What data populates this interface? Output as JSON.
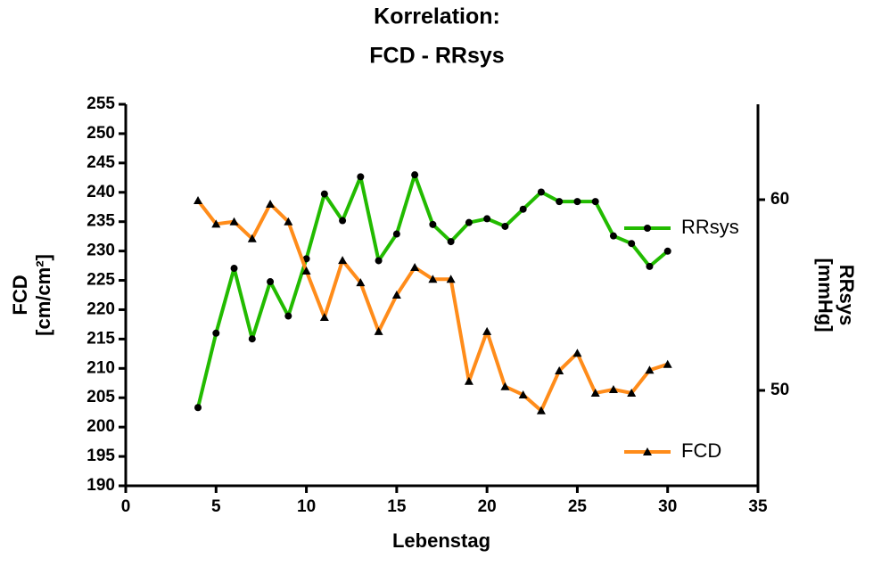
{
  "chart_data": {
    "type": "line",
    "title": [
      "Korrelation:",
      "FCD - RRsys"
    ],
    "x_label": "Lebenstag",
    "y_label": [
      "FCD",
      "[cm/cm²]"
    ],
    "y2_label": [
      "RRsys",
      "[mmHg]"
    ],
    "x": [
      4,
      5,
      6,
      7,
      8,
      9,
      10,
      11,
      12,
      13,
      14,
      15,
      16,
      17,
      18,
      19,
      20,
      21,
      22,
      23,
      24,
      25,
      26,
      27,
      28,
      29,
      30
    ],
    "xlim": [
      0,
      35
    ],
    "xticks": [
      0,
      5,
      10,
      15,
      20,
      25,
      30,
      35
    ],
    "ylim": [
      190,
      255
    ],
    "yticks": [
      190,
      195,
      200,
      205,
      210,
      215,
      220,
      225,
      230,
      235,
      240,
      245,
      250,
      255
    ],
    "y2lim": [
      45,
      65
    ],
    "y2ticks": [
      50,
      60
    ],
    "series": [
      {
        "name": "RRsys",
        "color": "#22bb00",
        "marker": "circle",
        "axis": "y2",
        "values": [
          49.1,
          53.0,
          56.4,
          52.7,
          55.7,
          53.9,
          56.9,
          60.3,
          58.9,
          61.2,
          56.8,
          58.2,
          61.3,
          58.7,
          57.8,
          58.8,
          59.0,
          58.6,
          59.5,
          60.4,
          59.9,
          59.9,
          59.9,
          58.1,
          57.7,
          56.5,
          57.3
        ]
      },
      {
        "name": "FCD",
        "color": "#ff8c1a",
        "marker": "triangle",
        "values": [
          238.6,
          234.6,
          235.0,
          232.1,
          238.0,
          235.0,
          226.6,
          218.7,
          228.4,
          224.6,
          216.3,
          222.5,
          227.2,
          225.2,
          225.2,
          207.8,
          216.3,
          206.9,
          205.5,
          202.8,
          209.6,
          212.6,
          205.8,
          206.4,
          205.8,
          209.7,
          210.7
        ]
      }
    ]
  }
}
